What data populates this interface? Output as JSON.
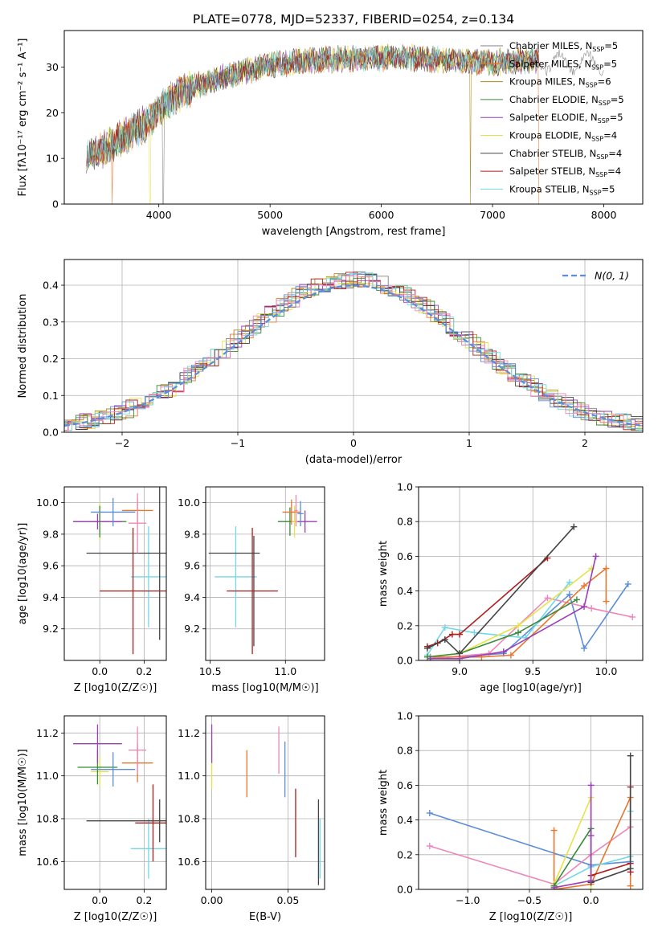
{
  "figure": {
    "title": "PLATE=0778, MJD=52337, FIBERID=0254, z=0.134"
  },
  "models": [
    {
      "name": "Chabrier MILES",
      "nssp": "5",
      "color": "#808080"
    },
    {
      "name": "Salpeter MILES",
      "nssp": "5",
      "color": "#e8772e"
    },
    {
      "name": "Kroupa MILES",
      "nssp": "6",
      "color": "#b5891a"
    },
    {
      "name": "Chabrier ELODIE",
      "nssp": "5",
      "color": "#3a8a3a"
    },
    {
      "name": "Salpeter ELODIE",
      "nssp": "5",
      "color": "#9b3fb5"
    },
    {
      "name": "Kroupa ELODIE",
      "nssp": "4",
      "color": "#e4e44a"
    },
    {
      "name": "Chabrier STELIB",
      "nssp": "4",
      "color": "#444444"
    },
    {
      "name": "Salpeter STELIB",
      "nssp": "4",
      "color": "#b01e1e"
    },
    {
      "name": "Kroupa STELIB",
      "nssp": "5",
      "color": "#72d8e6"
    }
  ],
  "nssp_prefix": "N",
  "nssp_sub": "SSP",
  "chart_data": [
    {
      "id": "spectrum",
      "type": "line",
      "xlabel": "wavelength [Angstrom, rest frame]",
      "ylabel": "Flux [fλ10⁻¹⁷ erg cm⁻² s⁻¹ A⁻¹]",
      "xlim": [
        3150,
        8350
      ],
      "ylim": [
        0,
        38
      ],
      "xticks": [
        4000,
        5000,
        6000,
        7000,
        8000
      ],
      "yticks": [
        0,
        10,
        20,
        30
      ],
      "grid": false,
      "legend": "top-right",
      "continuum": {
        "x": [
          3350,
          3500,
          3700,
          3900,
          4100,
          4300,
          4600,
          5000,
          5400,
          5800,
          6200,
          6600,
          7000,
          7400,
          7700,
          8000
        ],
        "y": [
          11,
          12,
          15,
          18,
          23,
          25.5,
          28,
          30.5,
          31.5,
          32,
          32,
          31.5,
          31,
          31.5,
          30.5,
          30
        ]
      },
      "wavelength_range": [
        3350,
        7420
      ],
      "extended_range_series": "Chabrier MILES",
      "extended_range_end": 8000,
      "dropouts": [
        {
          "series": "Salpeter MILES",
          "wavelength": 3580
        },
        {
          "series": "Kroupa ELODIE",
          "wavelength": 3920
        },
        {
          "series": "Chabrier MILES",
          "wavelength": 4040
        },
        {
          "series": "Kroupa MILES",
          "wavelength": 6800
        },
        {
          "series": "Salpeter MILES",
          "wavelength": 7420
        }
      ]
    },
    {
      "id": "residual-histogram",
      "type": "histogram",
      "xlabel": "(data-model)/error",
      "ylabel": "Normed distribution",
      "xlim": [
        -2.5,
        2.5
      ],
      "ylim": [
        0,
        0.47
      ],
      "xticks": [
        -2,
        -1,
        0,
        1,
        2
      ],
      "yticks": [
        0.0,
        0.1,
        0.2,
        0.3,
        0.4
      ],
      "grid": true,
      "bin_width": 0.1,
      "reference_curve": {
        "name": "N(0, 1)",
        "mean": 0,
        "sigma": 1,
        "style": "dashed",
        "color": "#5b8dd9"
      },
      "legend": "top-right"
    },
    {
      "id": "age-vs-Z",
      "type": "errorbar",
      "xlabel": "Z [log10(Z/Z☉)]",
      "ylabel": "age [log10(age/yr)]",
      "xlim": [
        -0.16,
        0.3
      ],
      "ylim": [
        9.0,
        10.1
      ],
      "xticks": [
        0.0,
        0.2
      ],
      "yticks": [
        9.2,
        9.4,
        9.6,
        9.8,
        10.0
      ],
      "grid": true,
      "points": [
        {
          "x": 0.22,
          "y": 9.53,
          "xerr": 0.08,
          "yerr": 0.32,
          "color": "#72d8e6"
        },
        {
          "x": 0.15,
          "y": 9.44,
          "xerr": 0.15,
          "yerr": 0.4,
          "color": "#b01e1e"
        },
        {
          "x": 0.27,
          "y": 9.68,
          "xerr": 0.33,
          "yerr": 0.55,
          "color": "#444444"
        },
        {
          "x": 0.0,
          "y": 9.88,
          "xerr": 0.04,
          "yerr": 0.12,
          "color": "#e4e44a"
        },
        {
          "x": 0.0,
          "y": 9.88,
          "xerr": 0.12,
          "yerr": 0.1,
          "color": "#3a8a3a"
        },
        {
          "x": -0.01,
          "y": 9.88,
          "xerr": 0.11,
          "yerr": 0.05,
          "color": "#9b3fb5"
        },
        {
          "x": 0.06,
          "y": 9.94,
          "xerr": 0.1,
          "yerr": 0.09,
          "color": "#5b8dd9"
        },
        {
          "x": 0.17,
          "y": 9.95,
          "xerr": 0.07,
          "yerr": 0.08,
          "color": "#e8772e"
        },
        {
          "x": 0.17,
          "y": 9.87,
          "xerr": 0.04,
          "yerr": 0.19,
          "color": "#ef86b9"
        }
      ]
    },
    {
      "id": "age-vs-mass",
      "type": "errorbar",
      "xlabel": "mass [log10(M/M☉)]",
      "ylabel": "",
      "xlim": [
        10.47,
        11.26
      ],
      "ylim": [
        9.0,
        10.1
      ],
      "xticks": [
        10.5,
        11.0
      ],
      "yticks": [
        9.2,
        9.4,
        9.6,
        9.8,
        10.0
      ],
      "grid": true,
      "points": [
        {
          "x": 10.67,
          "y": 9.53,
          "xerr": 0.14,
          "yerr": 0.32,
          "color": "#72d8e6"
        },
        {
          "x": 10.78,
          "y": 9.44,
          "xerr": 0.17,
          "yerr": 0.4,
          "color": "#b01e1e"
        },
        {
          "x": 10.79,
          "y": 9.44,
          "xerr": 0.0,
          "yerr": 0.35,
          "color": "#444444"
        },
        {
          "x": 10.66,
          "y": 9.68,
          "xerr": 0.17,
          "yerr": 0.0,
          "color": "#444444"
        },
        {
          "x": 11.03,
          "y": 9.88,
          "xerr": 0.08,
          "yerr": 0.09,
          "color": "#3a8a3a"
        },
        {
          "x": 11.13,
          "y": 9.88,
          "xerr": 0.08,
          "yerr": 0.07,
          "color": "#9b3fb5"
        },
        {
          "x": 11.06,
          "y": 9.88,
          "xerr": 0.02,
          "yerr": 0.1,
          "color": "#e4e44a"
        },
        {
          "x": 11.04,
          "y": 9.94,
          "xerr": 0.06,
          "yerr": 0.08,
          "color": "#e8772e"
        },
        {
          "x": 11.1,
          "y": 9.93,
          "xerr": 0.02,
          "yerr": 0.08,
          "color": "#5b8dd9"
        },
        {
          "x": 11.07,
          "y": 9.95,
          "xerr": 0.01,
          "yerr": 0.1,
          "color": "#ef86b9"
        }
      ]
    },
    {
      "id": "mass-weight-vs-age",
      "type": "line",
      "xlabel": "age [log10(age/yr)]",
      "ylabel": "mass weight",
      "xlim": [
        8.72,
        10.25
      ],
      "ylim": [
        0,
        1
      ],
      "xticks": [
        9.0,
        9.5,
        10.0
      ],
      "yticks": [
        0.0,
        0.2,
        0.4,
        0.6,
        0.8,
        1.0
      ],
      "grid": true,
      "series": [
        {
          "color": "#5b8dd9",
          "x": [
            8.8,
            9.3,
            9.75,
            9.85,
            10.15
          ],
          "y": [
            0.01,
            0.04,
            0.38,
            0.07,
            0.44
          ]
        },
        {
          "color": "#ef86b9",
          "x": [
            8.8,
            9.2,
            9.6,
            9.9,
            10.18
          ],
          "y": [
            0.01,
            0.04,
            0.36,
            0.3,
            0.25
          ]
        },
        {
          "color": "#e8772e",
          "x": [
            8.8,
            9.15,
            9.35,
            9.85,
            10.0,
            10.0
          ],
          "y": [
            0.02,
            0.02,
            0.03,
            0.43,
            0.53,
            0.34
          ]
        },
        {
          "color": "#72d8e6",
          "x": [
            8.78,
            8.9,
            9.1,
            9.45,
            9.75
          ],
          "y": [
            0.03,
            0.19,
            0.16,
            0.13,
            0.45
          ]
        },
        {
          "color": "#e4e44a",
          "x": [
            8.78,
            9.0,
            9.4,
            9.9
          ],
          "y": [
            0.02,
            0.04,
            0.2,
            0.53
          ]
        },
        {
          "color": "#3a8a3a",
          "x": [
            8.78,
            9.0,
            9.4,
            9.8
          ],
          "y": [
            0.02,
            0.04,
            0.16,
            0.35
          ]
        },
        {
          "color": "#b01e1e",
          "x": [
            8.78,
            8.85,
            8.95,
            9.0,
            9.6
          ],
          "y": [
            0.08,
            0.1,
            0.15,
            0.15,
            0.59
          ]
        },
        {
          "color": "#444444",
          "x": [
            8.78,
            8.9,
            9.0,
            9.78
          ],
          "y": [
            0.07,
            0.12,
            0.04,
            0.77
          ]
        },
        {
          "color": "#9b3fb5",
          "x": [
            8.8,
            9.0,
            9.3,
            9.85,
            9.93
          ],
          "y": [
            0.01,
            0.01,
            0.05,
            0.31,
            0.6
          ]
        }
      ]
    },
    {
      "id": "mass-vs-Z",
      "type": "errorbar",
      "xlabel": "Z [log10(Z/Z☉)]",
      "ylabel": "mass [log10(M/M☉)]",
      "xlim": [
        -0.16,
        0.3
      ],
      "ylim": [
        10.47,
        11.28
      ],
      "xticks": [
        0.0,
        0.2
      ],
      "yticks": [
        10.6,
        10.8,
        11.0,
        11.2
      ],
      "grid": true,
      "points": [
        {
          "x": 0.22,
          "y": 10.66,
          "xerr": 0.08,
          "yerr": 0.14,
          "color": "#72d8e6"
        },
        {
          "x": 0.24,
          "y": 10.78,
          "xerr": 0.08,
          "yerr": 0.18,
          "color": "#b01e1e"
        },
        {
          "x": 0.27,
          "y": 10.79,
          "xerr": 0.33,
          "yerr": 0.1,
          "color": "#444444"
        },
        {
          "x": 0.0,
          "y": 11.02,
          "xerr": 0.04,
          "yerr": 0.07,
          "color": "#e4e44a"
        },
        {
          "x": -0.01,
          "y": 11.04,
          "xerr": 0.09,
          "yerr": 0.08,
          "color": "#3a8a3a"
        },
        {
          "x": -0.01,
          "y": 11.15,
          "xerr": 0.11,
          "yerr": 0.09,
          "color": "#9b3fb5"
        },
        {
          "x": 0.06,
          "y": 11.03,
          "xerr": 0.1,
          "yerr": 0.08,
          "color": "#5b8dd9"
        },
        {
          "x": 0.17,
          "y": 11.06,
          "xerr": 0.07,
          "yerr": 0.09,
          "color": "#e8772e"
        },
        {
          "x": 0.17,
          "y": 11.12,
          "xerr": 0.04,
          "yerr": 0.11,
          "color": "#ef86b9"
        }
      ]
    },
    {
      "id": "mass-vs-EBV",
      "type": "errorbar",
      "xlabel": "E(B-V)",
      "ylabel": "",
      "xlim": [
        -0.004,
        0.074
      ],
      "ylim": [
        10.47,
        11.28
      ],
      "xticks": [
        0.0,
        0.05
      ],
      "yticks": [
        10.6,
        10.8,
        11.0,
        11.2
      ],
      "grid": true,
      "points": [
        {
          "x": 0.0,
          "y": 11.04,
          "xerr": 0.0,
          "yerr": 0.1,
          "color": "#e4e44a"
        },
        {
          "x": 0.0,
          "y": 11.15,
          "xerr": 0.0,
          "yerr": 0.09,
          "color": "#9b3fb5"
        },
        {
          "x": 0.023,
          "y": 11.01,
          "xerr": 0.0,
          "yerr": 0.11,
          "color": "#e8772e"
        },
        {
          "x": 0.044,
          "y": 11.12,
          "xerr": 0.0,
          "yerr": 0.11,
          "color": "#ef86b9"
        },
        {
          "x": 0.048,
          "y": 11.03,
          "xerr": 0.0,
          "yerr": 0.13,
          "color": "#5b8dd9"
        },
        {
          "x": 0.055,
          "y": 10.78,
          "xerr": 0.0,
          "yerr": 0.16,
          "color": "#b01e1e"
        },
        {
          "x": 0.07,
          "y": 10.69,
          "xerr": 0.0,
          "yerr": 0.2,
          "color": "#444444"
        },
        {
          "x": 0.071,
          "y": 10.66,
          "xerr": 0.0,
          "yerr": 0.14,
          "color": "#72d8e6"
        }
      ]
    },
    {
      "id": "mass-weight-vs-Z",
      "type": "line",
      "xlabel": "Z [log10(Z/Z☉)]",
      "ylabel": "mass weight",
      "xlim": [
        -1.4,
        0.42
      ],
      "ylim": [
        0,
        1
      ],
      "xticks": [
        -1.0,
        -0.5,
        0.0
      ],
      "yticks": [
        0.0,
        0.2,
        0.4,
        0.6,
        0.8,
        1.0
      ],
      "grid": true,
      "series": [
        {
          "color": "#5b8dd9",
          "x": [
            -1.31,
            0.0,
            0.32
          ],
          "y": [
            0.44,
            0.14,
            0.16
          ]
        },
        {
          "color": "#ef86b9",
          "x": [
            -1.31,
            -0.3,
            0.0,
            0.32
          ],
          "y": [
            0.25,
            0.03,
            0.2,
            0.36
          ]
        },
        {
          "color": "#e8772e",
          "x": [
            -0.3,
            -0.3,
            0.0,
            0.32,
            0.32
          ],
          "y": [
            0.34,
            0.0,
            0.03,
            0.53,
            0.02
          ]
        },
        {
          "color": "#72d8e6",
          "x": [
            -0.3,
            0.0,
            0.32,
            0.32
          ],
          "y": [
            0.02,
            0.13,
            0.19,
            0.45
          ]
        },
        {
          "color": "#e4e44a",
          "x": [
            -0.3,
            0.0,
            0.0
          ],
          "y": [
            0.03,
            0.53,
            0.0
          ]
        },
        {
          "color": "#3a8a3a",
          "x": [
            -0.3,
            0.0,
            0.0
          ],
          "y": [
            0.02,
            0.35,
            0.04
          ]
        },
        {
          "color": "#b01e1e",
          "x": [
            0.0,
            0.32,
            0.32,
            0.32
          ],
          "y": [
            0.08,
            0.15,
            0.59,
            0.1
          ]
        },
        {
          "color": "#444444",
          "x": [
            0.0,
            0.32,
            0.32
          ],
          "y": [
            0.04,
            0.12,
            0.77
          ]
        },
        {
          "color": "#9b3fb5",
          "x": [
            -0.3,
            0.0,
            0.0,
            0.0
          ],
          "y": [
            0.01,
            0.05,
            0.6,
            0.31
          ]
        }
      ]
    }
  ]
}
